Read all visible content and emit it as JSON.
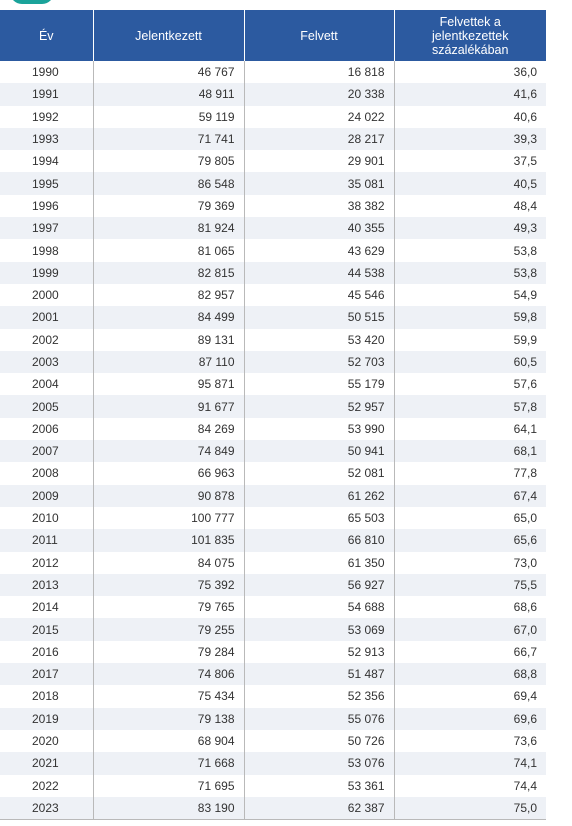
{
  "table": {
    "headers": [
      "Év",
      "Jelentkezett",
      "Felvett",
      "Felvettek a jelentkezettek százalékában"
    ],
    "rows": [
      [
        "1990",
        "46 767",
        "16 818",
        "36,0"
      ],
      [
        "1991",
        "48 911",
        "20 338",
        "41,6"
      ],
      [
        "1992",
        "59 119",
        "24 022",
        "40,6"
      ],
      [
        "1993",
        "71 741",
        "28 217",
        "39,3"
      ],
      [
        "1994",
        "79 805",
        "29 901",
        "37,5"
      ],
      [
        "1995",
        "86 548",
        "35 081",
        "40,5"
      ],
      [
        "1996",
        "79 369",
        "38 382",
        "48,4"
      ],
      [
        "1997",
        "81 924",
        "40 355",
        "49,3"
      ],
      [
        "1998",
        "81 065",
        "43 629",
        "53,8"
      ],
      [
        "1999",
        "82 815",
        "44 538",
        "53,8"
      ],
      [
        "2000",
        "82 957",
        "45 546",
        "54,9"
      ],
      [
        "2001",
        "84 499",
        "50 515",
        "59,8"
      ],
      [
        "2002",
        "89 131",
        "53 420",
        "59,9"
      ],
      [
        "2003",
        "87 110",
        "52 703",
        "60,5"
      ],
      [
        "2004",
        "95 871",
        "55 179",
        "57,6"
      ],
      [
        "2005",
        "91 677",
        "52 957",
        "57,8"
      ],
      [
        "2006",
        "84 269",
        "53 990",
        "64,1"
      ],
      [
        "2007",
        "74 849",
        "50 941",
        "68,1"
      ],
      [
        "2008",
        "66 963",
        "52 081",
        "77,8"
      ],
      [
        "2009",
        "90 878",
        "61 262",
        "67,4"
      ],
      [
        "2010",
        "100 777",
        "65 503",
        "65,0"
      ],
      [
        "2011",
        "101 835",
        "66 810",
        "65,6"
      ],
      [
        "2012",
        "84 075",
        "61 350",
        "73,0"
      ],
      [
        "2013",
        "75 392",
        "56 927",
        "75,5"
      ],
      [
        "2014",
        "79 765",
        "54 688",
        "68,6"
      ],
      [
        "2015",
        "79 255",
        "53 069",
        "67,0"
      ],
      [
        "2016",
        "79 284",
        "52 913",
        "66,7"
      ],
      [
        "2017",
        "74 806",
        "51 487",
        "68,8"
      ],
      [
        "2018",
        "75 434",
        "52 356",
        "69,4"
      ],
      [
        "2019",
        "79 138",
        "55 076",
        "69,6"
      ],
      [
        "2020",
        "68 904",
        "50 726",
        "73,6"
      ],
      [
        "2021",
        "71 668",
        "53 076",
        "74,1"
      ],
      [
        "2022",
        "71 695",
        "53 361",
        "74,4"
      ],
      [
        "2023",
        "83 190",
        "62 387",
        "75,0"
      ]
    ]
  },
  "colors": {
    "header_bg": "#2c5aa0",
    "stripe_bg": "#eef1f6",
    "corner_accent": "#1aa39a"
  }
}
